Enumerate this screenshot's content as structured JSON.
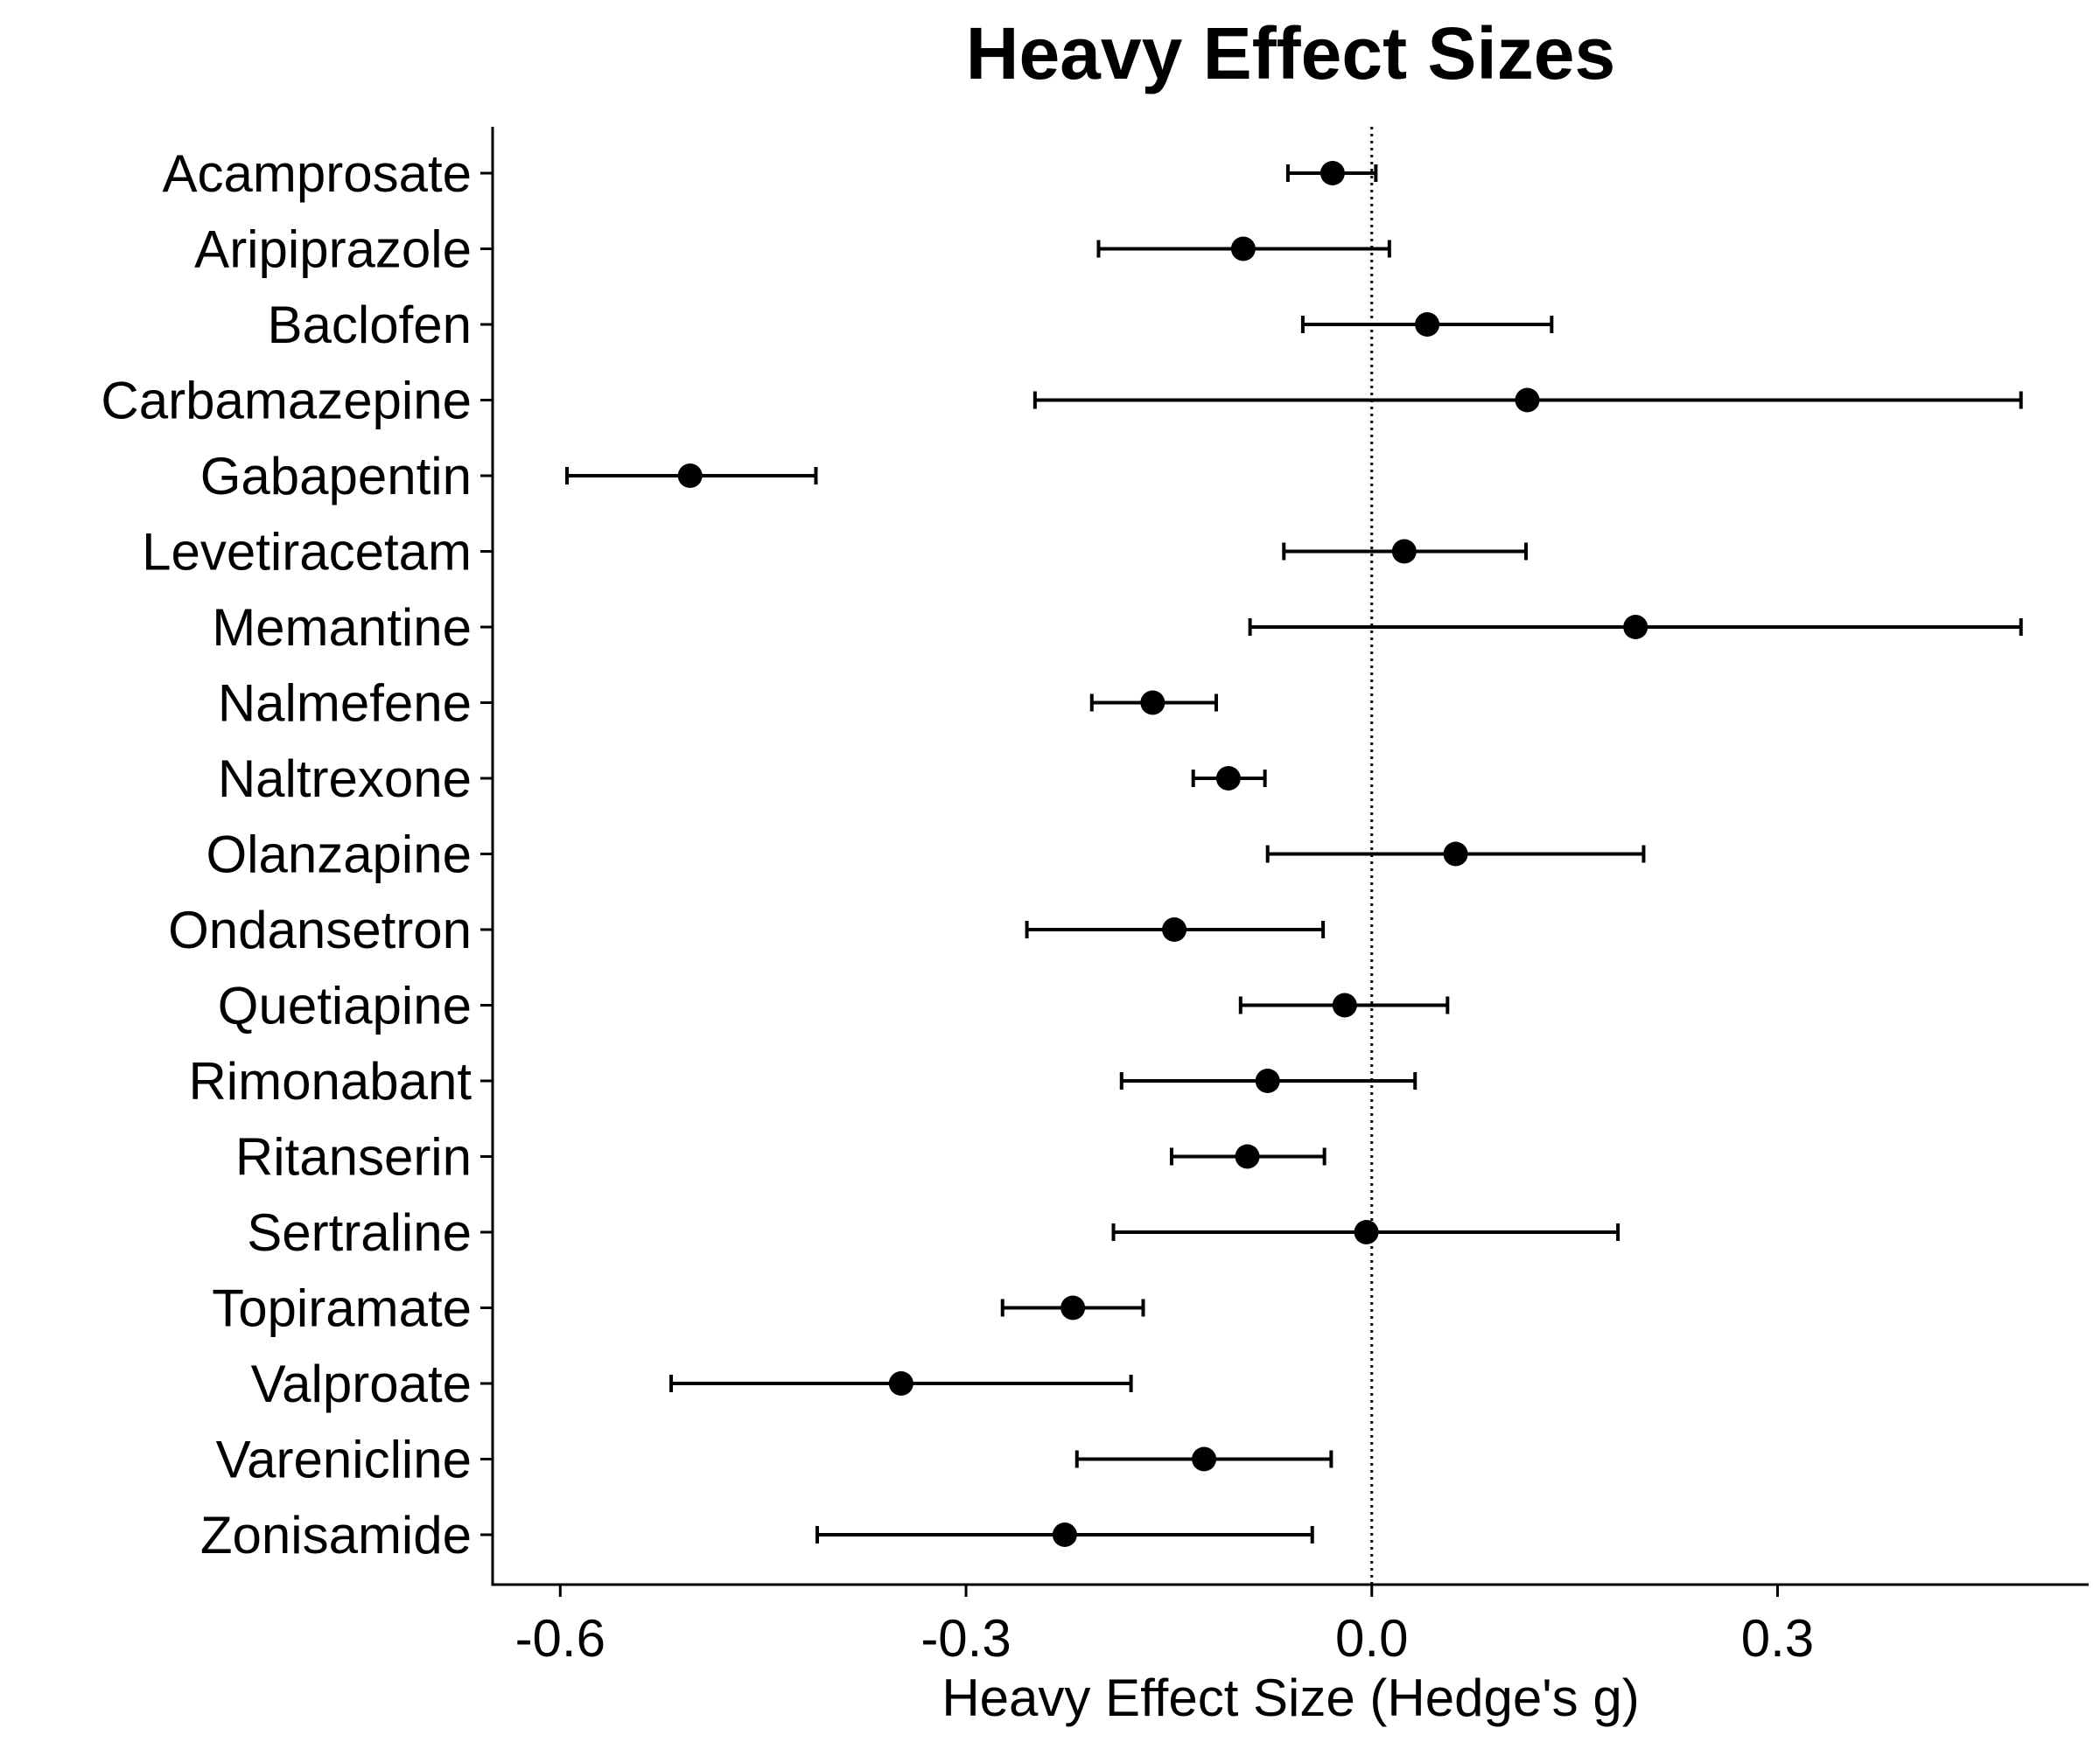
{
  "chart_data": {
    "type": "scatter",
    "subtype": "forest-plot-horizontal-errorbars",
    "title": "Heavy Effect Sizes",
    "xlabel": "Heavy Effect Size (Hedge's g)",
    "ylabel": "",
    "xlim": [
      -0.65,
      0.53
    ],
    "x_ticks": [
      -0.6,
      -0.3,
      0.0,
      0.3
    ],
    "x_tick_labels": [
      "-0.6",
      "-0.3",
      "0.0",
      "0.3"
    ],
    "reference_line": {
      "x": 0.0,
      "style": "dotted"
    },
    "grid": false,
    "legend": "none",
    "categories": [
      "Acamprosate",
      "Aripiprazole",
      "Baclofen",
      "Carbamazepine",
      "Gabapentin",
      "Levetiracetam",
      "Memantine",
      "Nalmefene",
      "Naltrexone",
      "Olanzapine",
      "Ondansetron",
      "Quetiapine",
      "Rimonabant",
      "Ritanserin",
      "Sertraline",
      "Topiramate",
      "Valproate",
      "Varenicline",
      "Zonisamide"
    ],
    "estimates": [
      -0.029,
      -0.095,
      0.041,
      0.115,
      -0.504,
      0.024,
      0.195,
      -0.162,
      -0.106,
      0.062,
      -0.146,
      -0.02,
      -0.077,
      -0.092,
      -0.004,
      -0.221,
      -0.348,
      -0.124,
      -0.227
    ],
    "ci_lower": [
      -0.062,
      -0.202,
      -0.051,
      -0.249,
      -0.595,
      -0.065,
      -0.09,
      -0.207,
      -0.132,
      -0.077,
      -0.255,
      -0.097,
      -0.185,
      -0.148,
      -0.191,
      -0.273,
      -0.518,
      -0.218,
      -0.41
    ],
    "ci_upper": [
      0.003,
      0.013,
      0.133,
      0.48,
      -0.411,
      0.114,
      0.48,
      -0.115,
      -0.079,
      0.201,
      -0.036,
      0.056,
      0.032,
      -0.035,
      0.182,
      -0.169,
      -0.178,
      -0.03,
      -0.044
    ],
    "colors": {
      "point": "#000000",
      "errorbar": "#000000",
      "axis": "#000000",
      "background": "#ffffff"
    }
  }
}
